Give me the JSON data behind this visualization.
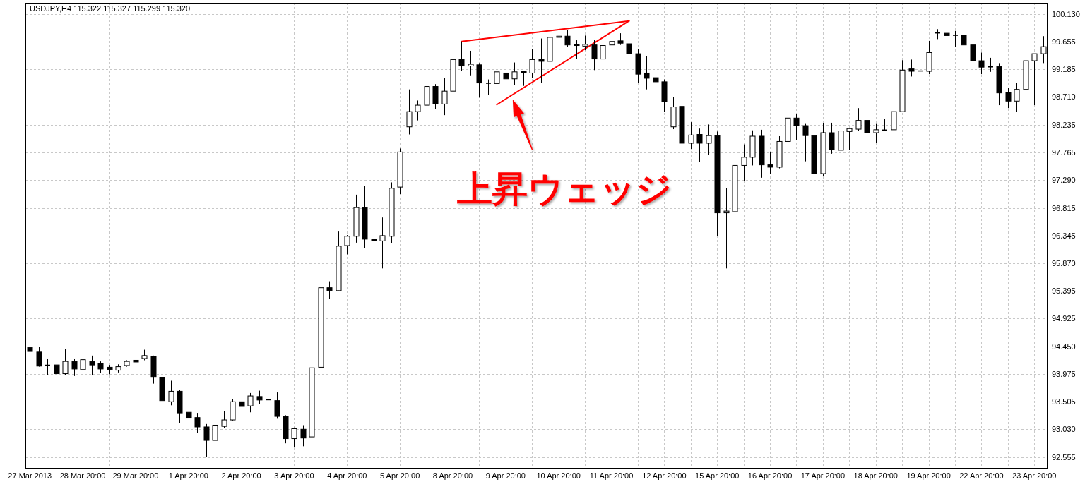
{
  "chart_data": {
    "type": "candlestick",
    "title": "USDJPY,H4 115.322 115.327 115.299 115.320",
    "categories": [
      "27 Mar 2013",
      null,
      null,
      null,
      null,
      null,
      "28 Mar 20:00",
      null,
      null,
      null,
      null,
      null,
      "29 Mar 20:00",
      null,
      null,
      null,
      null,
      null,
      "1 Apr 20:00",
      null,
      null,
      null,
      null,
      null,
      "2 Apr 20:00",
      null,
      null,
      null,
      null,
      null,
      "3 Apr 20:00",
      null,
      null,
      null,
      null,
      null,
      "4 Apr 20:00",
      null,
      null,
      null,
      null,
      null,
      "5 Apr 20:00",
      null,
      null,
      null,
      null,
      null,
      "8 Apr 20:00",
      null,
      null,
      null,
      null,
      null,
      "9 Apr 20:00",
      null,
      null,
      null,
      null,
      null,
      "10 Apr 20:00",
      null,
      null,
      null,
      null,
      null,
      "11 Apr 20:00",
      null,
      null,
      null,
      null,
      null,
      "12 Apr 20:00",
      null,
      null,
      null,
      null,
      null,
      "15 Apr 20:00",
      null,
      null,
      null,
      null,
      null,
      "16 Apr 20:00",
      null,
      null,
      null,
      null,
      null,
      "17 Apr 20:00",
      null,
      null,
      null,
      null,
      null,
      "18 Apr 20:00",
      null,
      null,
      null,
      null,
      null,
      "19 Apr 20:00",
      null,
      null,
      null,
      null,
      null,
      "22 Apr 20:00",
      null,
      null,
      null,
      null,
      null,
      "23 Apr 20:00",
      null
    ],
    "ohlc": [
      [
        94.43,
        94.49,
        94.35,
        94.36
      ],
      [
        94.35,
        94.44,
        94.1,
        94.11
      ],
      [
        94.13,
        94.24,
        93.96,
        94.12
      ],
      [
        94.13,
        94.25,
        93.86,
        93.98
      ],
      [
        93.98,
        94.4,
        93.96,
        94.19
      ],
      [
        94.19,
        94.24,
        93.94,
        94.06
      ],
      [
        94.05,
        94.25,
        94.04,
        94.22
      ],
      [
        94.19,
        94.29,
        93.95,
        94.13
      ],
      [
        94.15,
        94.19,
        93.99,
        94.06
      ],
      [
        94.09,
        94.13,
        93.97,
        94.05
      ],
      [
        94.04,
        94.14,
        94.0,
        94.1
      ],
      [
        94.12,
        94.21,
        94.1,
        94.19
      ],
      [
        94.21,
        94.27,
        94.1,
        94.18
      ],
      [
        94.24,
        94.39,
        94.21,
        94.29
      ],
      [
        94.28,
        94.29,
        93.81,
        93.93
      ],
      [
        93.92,
        93.94,
        93.26,
        93.52
      ],
      [
        93.5,
        93.86,
        93.44,
        93.68
      ],
      [
        93.68,
        93.7,
        93.14,
        93.31
      ],
      [
        93.32,
        93.4,
        93.19,
        93.22
      ],
      [
        93.23,
        93.31,
        92.97,
        93.07
      ],
      [
        93.07,
        93.12,
        92.56,
        92.84
      ],
      [
        92.84,
        93.18,
        92.68,
        93.1
      ],
      [
        93.08,
        93.34,
        93.05,
        93.19
      ],
      [
        93.19,
        93.55,
        93.18,
        93.5
      ],
      [
        93.5,
        93.51,
        93.28,
        93.42
      ],
      [
        93.43,
        93.65,
        93.32,
        93.6
      ],
      [
        93.59,
        93.69,
        93.46,
        93.53
      ],
      [
        93.54,
        93.55,
        93.32,
        93.53
      ],
      [
        93.52,
        93.66,
        93.21,
        93.25
      ],
      [
        93.25,
        93.27,
        92.79,
        92.87
      ],
      [
        92.87,
        93.06,
        92.72,
        93.04
      ],
      [
        93.03,
        93.1,
        92.74,
        92.88
      ],
      [
        92.9,
        94.15,
        92.77,
        94.08
      ],
      [
        94.09,
        95.68,
        93.98,
        95.45
      ],
      [
        95.45,
        95.56,
        95.26,
        95.4
      ],
      [
        95.4,
        96.41,
        95.39,
        96.16
      ],
      [
        96.17,
        96.35,
        96.02,
        96.33
      ],
      [
        96.33,
        97.04,
        96.22,
        96.82
      ],
      [
        96.82,
        97.19,
        96.13,
        96.28
      ],
      [
        96.28,
        96.44,
        95.85,
        96.25
      ],
      [
        96.25,
        96.65,
        95.78,
        96.34
      ],
      [
        96.33,
        97.25,
        96.21,
        97.15
      ],
      [
        97.17,
        97.83,
        97.05,
        97.77
      ],
      [
        98.2,
        98.84,
        98.07,
        98.46
      ],
      [
        98.46,
        98.65,
        98.31,
        98.57
      ],
      [
        98.57,
        98.99,
        98.43,
        98.89
      ],
      [
        98.89,
        98.93,
        98.51,
        98.59
      ],
      [
        98.59,
        99.03,
        98.4,
        98.81
      ],
      [
        98.81,
        99.36,
        98.8,
        99.35
      ],
      [
        99.35,
        99.66,
        99.16,
        99.24
      ],
      [
        99.24,
        99.5,
        99.08,
        99.27
      ],
      [
        99.26,
        99.29,
        98.7,
        98.95
      ],
      [
        98.95,
        99.01,
        98.75,
        98.94
      ],
      [
        98.94,
        99.25,
        98.58,
        99.14
      ],
      [
        99.12,
        99.34,
        98.91,
        99.02
      ],
      [
        99.02,
        99.3,
        98.91,
        99.14
      ],
      [
        99.15,
        99.16,
        98.9,
        99.12
      ],
      [
        99.12,
        99.53,
        99.03,
        99.35
      ],
      [
        99.35,
        99.71,
        98.95,
        99.32
      ],
      [
        99.32,
        99.75,
        99.31,
        99.73
      ],
      [
        99.73,
        99.85,
        99.69,
        99.75
      ],
      [
        99.75,
        99.85,
        99.57,
        99.6
      ],
      [
        99.61,
        99.68,
        99.36,
        99.59
      ],
      [
        99.58,
        99.76,
        99.51,
        99.61
      ],
      [
        99.6,
        99.68,
        99.17,
        99.36
      ],
      [
        99.36,
        99.68,
        99.13,
        99.59
      ],
      [
        99.6,
        99.94,
        99.59,
        99.66
      ],
      [
        99.67,
        99.8,
        99.6,
        99.63
      ],
      [
        99.62,
        99.63,
        99.34,
        99.45
      ],
      [
        99.45,
        99.53,
        98.95,
        99.1
      ],
      [
        99.12,
        99.41,
        98.84,
        99.03
      ],
      [
        99.04,
        99.19,
        98.66,
        98.97
      ],
      [
        98.97,
        99.01,
        98.45,
        98.63
      ],
      [
        98.2,
        98.71,
        98.16,
        98.54
      ],
      [
        98.55,
        98.56,
        97.54,
        97.92
      ],
      [
        97.92,
        98.28,
        97.82,
        98.06
      ],
      [
        98.07,
        98.17,
        97.6,
        97.92
      ],
      [
        97.92,
        98.24,
        97.72,
        98.05
      ],
      [
        98.05,
        98.12,
        96.33,
        96.73
      ],
      [
        96.73,
        97.15,
        95.78,
        96.76
      ],
      [
        96.75,
        97.7,
        96.72,
        97.54
      ],
      [
        97.54,
        97.9,
        97.28,
        97.68
      ],
      [
        97.68,
        98.14,
        97.54,
        98.04
      ],
      [
        98.04,
        98.15,
        97.33,
        97.55
      ],
      [
        97.55,
        97.77,
        97.39,
        97.51
      ],
      [
        97.51,
        98.04,
        97.49,
        97.95
      ],
      [
        97.95,
        98.39,
        97.94,
        98.35
      ],
      [
        98.35,
        98.42,
        97.97,
        98.22
      ],
      [
        98.22,
        98.25,
        97.61,
        98.05
      ],
      [
        98.05,
        98.09,
        97.19,
        97.4
      ],
      [
        97.4,
        98.26,
        97.36,
        98.1
      ],
      [
        98.1,
        98.27,
        97.74,
        97.81
      ],
      [
        97.8,
        98.36,
        97.62,
        98.13
      ],
      [
        98.12,
        98.18,
        97.8,
        98.17
      ],
      [
        98.16,
        98.52,
        98.13,
        98.31
      ],
      [
        98.31,
        98.37,
        97.91,
        98.1
      ],
      [
        98.1,
        98.25,
        97.92,
        98.15
      ],
      [
        98.15,
        98.34,
        98.14,
        98.14
      ],
      [
        98.15,
        98.67,
        98.1,
        98.46
      ],
      [
        98.46,
        99.34,
        98.45,
        99.17
      ],
      [
        99.19,
        99.35,
        99.06,
        99.15
      ],
      [
        99.16,
        99.33,
        98.95,
        99.15
      ],
      [
        99.15,
        99.67,
        99.1,
        99.47
      ],
      [
        99.81,
        99.87,
        99.7,
        99.8
      ],
      [
        99.8,
        99.87,
        99.75,
        99.76
      ],
      [
        99.77,
        99.84,
        99.57,
        99.76
      ],
      [
        99.77,
        99.84,
        99.54,
        99.6
      ],
      [
        99.6,
        99.6,
        98.97,
        99.33
      ],
      [
        99.33,
        99.47,
        99.1,
        99.22
      ],
      [
        99.23,
        99.38,
        99.14,
        99.22
      ],
      [
        99.23,
        99.29,
        98.57,
        98.78
      ],
      [
        98.79,
        98.87,
        98.52,
        98.64
      ],
      [
        98.64,
        98.95,
        98.46,
        98.84
      ],
      [
        98.84,
        99.53,
        98.83,
        99.33
      ],
      [
        99.33,
        99.45,
        98.57,
        99.45
      ],
      [
        99.45,
        99.75,
        99.29,
        99.57
      ]
    ],
    "series": [
      {
        "type": "line",
        "color": "#ff0000",
        "values": [
          null,
          null,
          null,
          null,
          null,
          null,
          null,
          null,
          null,
          null,
          null,
          null,
          null,
          null,
          null,
          null,
          null,
          null,
          null,
          null,
          null,
          null,
          null,
          null,
          null,
          null,
          null,
          null,
          null,
          null,
          null,
          null,
          null,
          null,
          null,
          null,
          null,
          null,
          null,
          null,
          null,
          null,
          null,
          null,
          null,
          null,
          null,
          null,
          null,
          99.66,
          null,
          null,
          null,
          null,
          null,
          null,
          null,
          null,
          null,
          null,
          null,
          null,
          null,
          null,
          null,
          null,
          null,
          null,
          100.01,
          null,
          null,
          null,
          null,
          null,
          null,
          null,
          null,
          null,
          null,
          null,
          null,
          null,
          null,
          null,
          null,
          null,
          null,
          null,
          null,
          null,
          null,
          null,
          null,
          null,
          null,
          null,
          null,
          null,
          null,
          null,
          null,
          null,
          null,
          null,
          null,
          null,
          null,
          null,
          null,
          null,
          null,
          null,
          null,
          null,
          null,
          null
        ]
      },
      {
        "type": "line",
        "color": "#ff0000",
        "values": [
          null,
          null,
          null,
          null,
          null,
          null,
          null,
          null,
          null,
          null,
          null,
          null,
          null,
          null,
          null,
          null,
          null,
          null,
          null,
          null,
          null,
          null,
          null,
          null,
          null,
          null,
          null,
          null,
          null,
          null,
          null,
          null,
          null,
          null,
          null,
          null,
          null,
          null,
          null,
          null,
          null,
          null,
          null,
          null,
          null,
          null,
          null,
          null,
          null,
          null,
          null,
          null,
          null,
          98.58,
          null,
          null,
          null,
          null,
          null,
          null,
          null,
          null,
          null,
          null,
          null,
          null,
          null,
          null,
          100.01,
          null,
          null,
          null,
          null,
          null,
          null,
          null,
          null,
          null,
          null,
          null,
          null,
          null,
          null,
          null,
          null,
          null,
          null,
          null,
          null,
          null,
          null,
          null,
          null,
          null,
          null,
          null,
          null,
          null,
          null,
          null,
          null,
          null,
          null,
          null,
          null,
          null,
          null,
          null,
          null,
          null,
          null,
          null,
          null,
          null,
          null,
          null
        ]
      }
    ],
    "ylim": [
      92.37,
      100.32
    ],
    "yticks": [
      {
        "value": 100.13,
        "label": "100.130"
      },
      99.655,
      99.185,
      {
        "value": 98.71,
        "label": "98.710"
      },
      98.235,
      97.765,
      {
        "value": 97.29,
        "label": "97.290"
      },
      96.815,
      96.345,
      {
        "value": 95.87,
        "label": "95.870"
      },
      95.395,
      94.925,
      {
        "value": 94.45,
        "label": "94.450"
      },
      93.975,
      93.505,
      {
        "value": 93.03,
        "label": "93.030"
      },
      92.555
    ],
    "grid": true,
    "annotations": [
      "上昇ウェッジ"
    ]
  }
}
